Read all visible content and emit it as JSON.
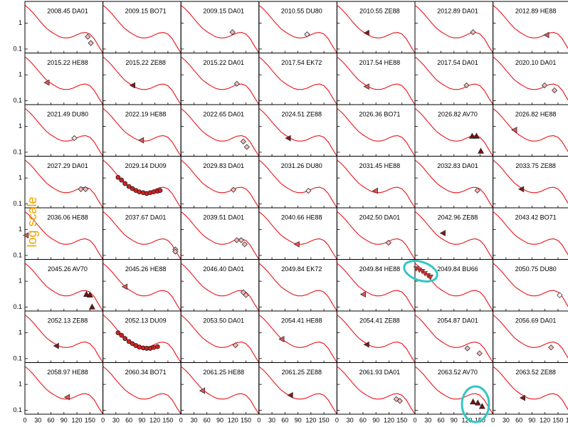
{
  "chart_data": {
    "type": "scatter",
    "xlim": [
      0,
      180
    ],
    "ylim": [
      0.07,
      7
    ],
    "ylog": true,
    "xticks": [
      0,
      30,
      60,
      90,
      120,
      150,
      180
    ],
    "yticks": [
      0.1,
      1
    ],
    "y_label": "log scale",
    "curve": {
      "color": "#e8141a",
      "x": [
        0,
        10,
        20,
        30,
        40,
        50,
        60,
        70,
        80,
        90,
        100,
        110,
        120,
        130,
        140,
        150,
        160,
        170,
        180
      ],
      "y": [
        5,
        3.6,
        2.4,
        1.5,
        0.95,
        0.63,
        0.47,
        0.37,
        0.3,
        0.27,
        0.27,
        0.3,
        0.36,
        0.42,
        0.44,
        0.38,
        0.25,
        0.13,
        0.07
      ]
    },
    "panels": [
      {
        "title": "2008.45 DA01",
        "marker": "diamond",
        "color": "#f5b8b8",
        "x": [
          145,
          152
        ],
        "y": [
          0.3,
          0.17
        ]
      },
      {
        "title": "2009.15 BO71"
      },
      {
        "title": "2009.15 DA01",
        "marker": "diamond",
        "color": "#f5b8b8",
        "x": [
          119
        ],
        "y": [
          0.45
        ]
      },
      {
        "title": "2010.55 DU80",
        "marker": "diamond",
        "color": "#fbe0e0",
        "x": [
          111
        ],
        "y": [
          0.37
        ]
      },
      {
        "title": "2010.55 ZE88",
        "marker": "triangle-left",
        "color": "#8a1515",
        "x": [
          69
        ],
        "y": [
          0.42
        ]
      },
      {
        "title": "2012.89 DA01",
        "marker": "diamond",
        "color": "#f5b8b8",
        "x": [
          134
        ],
        "y": [
          0.45
        ]
      },
      {
        "title": "2012.89 HE88",
        "marker": "triangle-left",
        "color": "#e05555",
        "x": [
          124
        ],
        "y": [
          0.35
        ]
      },
      {
        "title": "2015.22 HE88",
        "marker": "triangle-left",
        "color": "#e05555",
        "x": [
          51
        ],
        "y": [
          0.5
        ]
      },
      {
        "title": "2015.22 ZE88",
        "marker": "triangle-left",
        "color": "#8a1515",
        "x": [
          69
        ],
        "y": [
          0.39
        ]
      },
      {
        "title": "2015.22 DA01",
        "marker": "diamond",
        "color": "#f5b8b8",
        "x": [
          129
        ],
        "y": [
          0.45
        ]
      },
      {
        "title": "2017.54 EK72"
      },
      {
        "title": "2017.54 HE88",
        "marker": "triangle-left",
        "color": "#e05555",
        "x": [
          69
        ],
        "y": [
          0.35
        ]
      },
      {
        "title": "2017.54 DA01",
        "marker": "diamond",
        "color": "#f5b8b8",
        "x": [
          119
        ],
        "y": [
          0.39
        ]
      },
      {
        "title": "2020.10 DA01",
        "marker": "diamond",
        "color": "#f5b8b8",
        "x": [
          119,
          142
        ],
        "y": [
          0.39,
          0.25
        ]
      },
      {
        "title": "2021.49 DU80",
        "marker": "diamond",
        "color": "#fbe0e0",
        "x": [
          114
        ],
        "y": [
          0.35
        ]
      },
      {
        "title": "2022.19 HE88",
        "marker": "triangle-left",
        "color": "#e05555",
        "x": [
          89
        ],
        "y": [
          0.29
        ]
      },
      {
        "title": "2022.65 DA01",
        "marker": "diamond",
        "color": "#f5b8b8",
        "x": [
          144,
          152
        ],
        "y": [
          0.26,
          0.16
        ]
      },
      {
        "title": "2024.51 ZE88",
        "marker": "triangle-left",
        "color": "#8a1515",
        "x": [
          68
        ],
        "y": [
          0.35
        ]
      },
      {
        "title": "2026.36 BO71"
      },
      {
        "title": "2026.82 AV70",
        "marker": "triangle-up",
        "color": "#7a1010",
        "x": [
          132,
          142,
          152
        ],
        "y": [
          0.42,
          0.42,
          0.11
        ]
      },
      {
        "title": "2026.82 HE88",
        "marker": "triangle-left",
        "color": "#e05555",
        "x": [
          50
        ],
        "y": [
          0.73
        ]
      },
      {
        "title": "2027.29 DA01",
        "marker": "diamond",
        "color": "#f5b8b8",
        "x": [
          129,
          140
        ],
        "y": [
          0.37,
          0.37
        ]
      },
      {
        "title": "2029.14 DU09",
        "marker": "circle",
        "color": "#d42020",
        "x": [
          35,
          43,
          51,
          60,
          68,
          76,
          84,
          93,
          101,
          109,
          117,
          126,
          132
        ],
        "y": [
          1.06,
          0.83,
          0.61,
          0.47,
          0.39,
          0.33,
          0.29,
          0.27,
          0.25,
          0.27,
          0.29,
          0.31,
          0.33
        ]
      },
      {
        "title": "2029.83 DA01",
        "marker": "diamond",
        "color": "#f5b8b8",
        "x": [
          121
        ],
        "y": [
          0.35
        ]
      },
      {
        "title": "2031.26 DU80",
        "marker": "diamond",
        "color": "#fbe0e0",
        "x": [
          114
        ],
        "y": [
          0.32
        ]
      },
      {
        "title": "2031.45 HE88",
        "marker": "triangle-left",
        "color": "#e05555",
        "x": [
          89
        ],
        "y": [
          0.32
        ]
      },
      {
        "title": "2032.83 DA01",
        "marker": "diamond",
        "color": "#f5b8b8",
        "x": [
          144
        ],
        "y": [
          0.33
        ]
      },
      {
        "title": "2033.75 ZE88",
        "marker": "triangle-left",
        "color": "#8a1515",
        "x": [
          66
        ],
        "y": [
          0.37
        ]
      },
      {
        "title": "2036.06 HE88",
        "marker": "triangle-left",
        "color": "#e05555",
        "x": [
          3
        ],
        "y": [
          0.6
        ]
      },
      {
        "title": "2037.67 DA01",
        "marker": "diamond",
        "color": "#f5b8b8",
        "x": [
          167,
          167
        ],
        "y": [
          0.17,
          0.14
        ]
      },
      {
        "title": "2039.51 DA01",
        "marker": "diamond",
        "color": "#f5b8b8",
        "x": [
          129,
          139,
          147
        ],
        "y": [
          0.39,
          0.39,
          0.27
        ]
      },
      {
        "title": "2040.66 HE88",
        "marker": "triangle-left",
        "color": "#e05555",
        "x": [
          88
        ],
        "y": [
          0.27
        ]
      },
      {
        "title": "2042.50 DA01",
        "marker": "diamond",
        "color": "#f5b8b8",
        "x": [
          119
        ],
        "y": [
          0.31
        ]
      },
      {
        "title": "2042.96 ZE88",
        "marker": "triangle-left",
        "color": "#8a1515",
        "x": [
          65
        ],
        "y": [
          0.73
        ]
      },
      {
        "title": "2043.42 BO71"
      },
      {
        "title": "2045.26 AV70",
        "marker": "triangle-up",
        "color": "#7a1010",
        "x": [
          142,
          150,
          155
        ],
        "y": [
          0.31,
          0.29,
          0.1
        ]
      },
      {
        "title": "2045.26 HE88",
        "marker": "triangle-left",
        "color": "#e05555",
        "x": [
          51
        ],
        "y": [
          0.61
        ]
      },
      {
        "title": "2046.40 DA01",
        "marker": "diamond",
        "color": "#f5b8b8",
        "x": [
          144,
          150
        ],
        "y": [
          0.37,
          0.29
        ]
      },
      {
        "title": "2049.84 EK72"
      },
      {
        "title": "2049.84 HE88",
        "marker": "triangle-left",
        "color": "#e05555",
        "x": [
          61
        ],
        "y": [
          0.31
        ]
      },
      {
        "title": "2049.84 BU66",
        "marker": "triangle-down",
        "color": "#e03030",
        "x": [
          3,
          10,
          17,
          23,
          30,
          36
        ],
        "y": [
          3.06,
          2.7,
          2.4,
          1.98,
          1.65,
          1.45
        ]
      },
      {
        "title": "2050.75 DU80",
        "marker": "diamond",
        "color": "#ffffff",
        "x": [
          154
        ],
        "y": [
          0.29
        ]
      },
      {
        "title": "2052.13 ZE88",
        "marker": "triangle-left",
        "color": "#8a1515",
        "x": [
          73
        ],
        "y": [
          0.31
        ]
      },
      {
        "title": "2052.13 DU09",
        "marker": "circle",
        "color": "#d42020",
        "x": [
          35,
          43,
          51,
          60,
          68,
          76,
          84,
          93,
          101,
          109,
          117,
          126
        ],
        "y": [
          1.0,
          0.8,
          0.6,
          0.46,
          0.38,
          0.32,
          0.28,
          0.26,
          0.25,
          0.25,
          0.27,
          0.29
        ]
      },
      {
        "title": "2053.50 DA01",
        "marker": "diamond",
        "color": "#f5b8b8",
        "x": [
          126
        ],
        "y": [
          0.33
        ]
      },
      {
        "title": "2054.41 HE88",
        "marker": "triangle-left",
        "color": "#e05555",
        "x": [
          53
        ],
        "y": [
          0.57
        ]
      },
      {
        "title": "2054.41 ZE88",
        "marker": "triangle-left",
        "color": "#8a1515",
        "x": [
          69
        ],
        "y": [
          0.35
        ]
      },
      {
        "title": "2054.87 DA01",
        "marker": "diamond",
        "color": "#f5b8b8",
        "x": [
          121,
          149
        ],
        "y": [
          0.25,
          0.16
        ]
      },
      {
        "title": "2056.69 DA01",
        "marker": "diamond",
        "color": "#f5b8b8",
        "x": [
          134
        ],
        "y": [
          0.27
        ]
      },
      {
        "title": "2058.97 HE88",
        "marker": "triangle-left",
        "color": "#e05555",
        "x": [
          98
        ],
        "y": [
          0.32
        ]
      },
      {
        "title": "2060.34 BO71"
      },
      {
        "title": "2061.25 HE88",
        "marker": "triangle-left",
        "color": "#e05555",
        "x": [
          50
        ],
        "y": [
          0.57
        ]
      },
      {
        "title": "2061.25 ZE88",
        "marker": "triangle-left",
        "color": "#8a1515",
        "x": [
          73
        ],
        "y": [
          0.38
        ]
      },
      {
        "title": "2061.93 DA01",
        "marker": "diamond",
        "color": "#f5b8b8",
        "x": [
          137,
          145
        ],
        "y": [
          0.27,
          0.23
        ]
      },
      {
        "title": "2063.52 AV70",
        "marker": "triangle-up",
        "color": "#7a1010",
        "x": [
          134,
          145,
          155
        ],
        "y": [
          0.21,
          0.19,
          0.14
        ]
      },
      {
        "title": "2063.52 ZE88",
        "marker": "triangle-left",
        "color": "#8a1515",
        "x": [
          69
        ],
        "y": [
          0.3
        ]
      }
    ]
  }
}
